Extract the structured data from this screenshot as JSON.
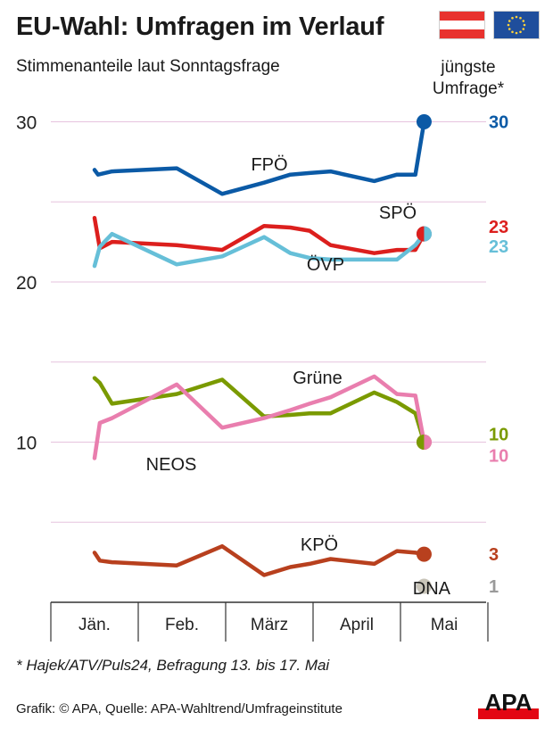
{
  "title": "EU-Wahl: Umfragen im Verlauf",
  "subtitle": "Stimmenanteile laut Sonntagsfrage",
  "latest_label_line1": "jüngste",
  "latest_label_line2": "Umfrage*",
  "footnote": "* Hajek/ATV/Puls24, Befragung 13. bis 17. Mai",
  "source": "Grafik: © APA, Quelle: APA-Wahltrend/Umfrageinstitute",
  "logo_text": "APA",
  "flags": [
    {
      "name": "austria-flag",
      "colors": [
        "#e8322e",
        "#ffffff",
        "#e8322e"
      ]
    },
    {
      "name": "eu-flag",
      "colors": [
        "#1f4e9c",
        "#ffd23a"
      ]
    }
  ],
  "colors": {
    "grid": "#e6c3de",
    "axis": "#333333",
    "logo": "#e30613"
  },
  "chart_data": {
    "type": "line",
    "y_ticks": [
      10,
      20,
      30
    ],
    "ylim": [
      0,
      33
    ],
    "months": [
      "Jän.",
      "Feb.",
      "März",
      "April",
      "Mai"
    ],
    "series": [
      {
        "name": "FPÖ",
        "color": "#0b5aa6",
        "final_label": "30",
        "x": [
          0.5,
          0.54,
          0.7,
          1.44,
          1.96,
          2.44,
          2.74,
          2.96,
          3.2,
          3.7,
          3.96,
          4.17,
          4.27
        ],
        "y": [
          27.0,
          26.7,
          26.9,
          27.1,
          25.5,
          26.2,
          26.7,
          26.8,
          26.9,
          26.3,
          26.7,
          26.7,
          30
        ]
      },
      {
        "name": "SPÖ",
        "color": "#dc1f1d",
        "final_label": "23",
        "x": [
          0.5,
          0.56,
          0.7,
          1.44,
          1.96,
          2.44,
          2.74,
          2.96,
          3.2,
          3.7,
          3.96,
          4.17,
          4.27
        ],
        "y": [
          24.0,
          22.1,
          22.5,
          22.3,
          22.0,
          23.5,
          23.4,
          23.2,
          22.3,
          21.8,
          22.0,
          22.0,
          23
        ]
      },
      {
        "name": "ÖVP",
        "color": "#66bfd8",
        "final_label": "23",
        "x": [
          0.5,
          0.56,
          0.7,
          1.44,
          1.96,
          2.44,
          2.74,
          2.96,
          3.2,
          3.7,
          3.96,
          4.17,
          4.27
        ],
        "y": [
          21.0,
          22.2,
          23.0,
          21.1,
          21.6,
          22.8,
          21.8,
          21.5,
          21.4,
          21.4,
          21.4,
          22.3,
          23
        ]
      },
      {
        "name": "Grüne",
        "color": "#7a9a00",
        "final_label": "10",
        "x": [
          0.5,
          0.56,
          0.7,
          1.44,
          1.96,
          2.44,
          2.74,
          2.96,
          3.2,
          3.7,
          3.96,
          4.17,
          4.27
        ],
        "y": [
          14.0,
          13.7,
          12.4,
          13.0,
          13.9,
          11.6,
          11.7,
          11.8,
          11.8,
          13.1,
          12.5,
          11.8,
          10
        ]
      },
      {
        "name": "NEOS",
        "color": "#e97eae",
        "final_label": "10",
        "x": [
          0.5,
          0.56,
          0.7,
          1.44,
          1.96,
          2.44,
          2.74,
          2.96,
          3.2,
          3.7,
          3.96,
          4.17,
          4.27
        ],
        "y": [
          9.0,
          11.2,
          11.5,
          13.6,
          10.9,
          11.5,
          12.0,
          12.4,
          12.8,
          14.1,
          13.0,
          12.9,
          10
        ]
      },
      {
        "name": "KPÖ",
        "color": "#b8401e",
        "final_label": "3",
        "x": [
          0.5,
          0.56,
          0.7,
          1.44,
          1.96,
          2.44,
          2.74,
          2.96,
          3.2,
          3.7,
          3.96,
          4.17,
          4.27
        ],
        "y": [
          3.1,
          2.6,
          2.5,
          2.3,
          3.5,
          1.7,
          2.2,
          2.4,
          2.7,
          2.4,
          3.2,
          3.1,
          3
        ]
      },
      {
        "name": "DNA",
        "color": "#c8c4b8",
        "final_label": "1",
        "label_color": "#9a9a9a",
        "x": [
          4.27
        ],
        "y": [
          1
        ]
      }
    ]
  }
}
